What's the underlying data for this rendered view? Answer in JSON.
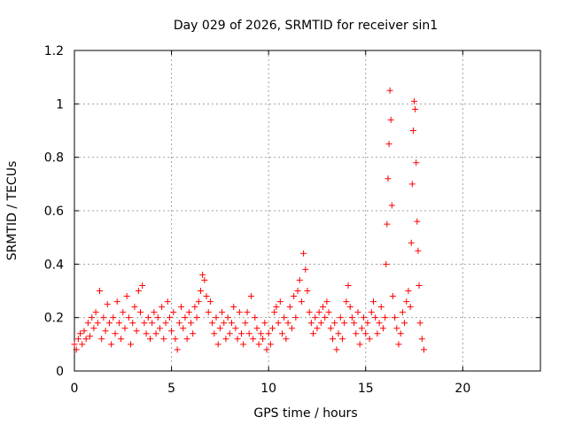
{
  "chart_data": {
    "type": "scatter",
    "title": "Day 029 of 2026, SRMTID for receiver sin1",
    "xlabel": "GPS time / hours",
    "ylabel": "SRMTID / TECUs",
    "xlim": [
      0,
      24
    ],
    "ylim": [
      0,
      1.2
    ],
    "xticks": [
      0,
      5,
      10,
      15,
      20
    ],
    "yticks": [
      0,
      0.2,
      0.4,
      0.6,
      0.8,
      1,
      1.2
    ],
    "xtick_labels": [
      "0",
      "5",
      "10",
      "15",
      "20"
    ],
    "ytick_labels": [
      "0",
      "0.2",
      "0.4",
      "0.6",
      "0.8",
      "1",
      "1.2"
    ],
    "grid": true,
    "marker": "+",
    "series": [
      {
        "name": "SRMTID",
        "color": "#ff0000",
        "points": [
          [
            0.0,
            0.1
          ],
          [
            0.1,
            0.08
          ],
          [
            0.2,
            0.12
          ],
          [
            0.3,
            0.14
          ],
          [
            0.4,
            0.1
          ],
          [
            0.5,
            0.15
          ],
          [
            0.6,
            0.12
          ],
          [
            0.7,
            0.18
          ],
          [
            0.8,
            0.13
          ],
          [
            0.9,
            0.2
          ],
          [
            1.0,
            0.16
          ],
          [
            1.1,
            0.22
          ],
          [
            1.2,
            0.18
          ],
          [
            1.3,
            0.3
          ],
          [
            1.4,
            0.12
          ],
          [
            1.5,
            0.2
          ],
          [
            1.6,
            0.15
          ],
          [
            1.7,
            0.25
          ],
          [
            1.8,
            0.18
          ],
          [
            1.9,
            0.1
          ],
          [
            2.0,
            0.2
          ],
          [
            2.1,
            0.14
          ],
          [
            2.2,
            0.26
          ],
          [
            2.3,
            0.18
          ],
          [
            2.4,
            0.12
          ],
          [
            2.5,
            0.22
          ],
          [
            2.6,
            0.16
          ],
          [
            2.7,
            0.28
          ],
          [
            2.8,
            0.2
          ],
          [
            2.9,
            0.1
          ],
          [
            3.0,
            0.18
          ],
          [
            3.1,
            0.24
          ],
          [
            3.2,
            0.15
          ],
          [
            3.3,
            0.3
          ],
          [
            3.4,
            0.22
          ],
          [
            3.5,
            0.32
          ],
          [
            3.6,
            0.18
          ],
          [
            3.7,
            0.14
          ],
          [
            3.8,
            0.2
          ],
          [
            3.9,
            0.12
          ],
          [
            4.0,
            0.18
          ],
          [
            4.1,
            0.22
          ],
          [
            4.2,
            0.14
          ],
          [
            4.3,
            0.2
          ],
          [
            4.4,
            0.16
          ],
          [
            4.5,
            0.24
          ],
          [
            4.6,
            0.12
          ],
          [
            4.7,
            0.18
          ],
          [
            4.8,
            0.26
          ],
          [
            4.9,
            0.2
          ],
          [
            5.0,
            0.15
          ],
          [
            5.1,
            0.22
          ],
          [
            5.2,
            0.12
          ],
          [
            5.3,
            0.08
          ],
          [
            5.4,
            0.18
          ],
          [
            5.5,
            0.24
          ],
          [
            5.6,
            0.16
          ],
          [
            5.7,
            0.2
          ],
          [
            5.8,
            0.12
          ],
          [
            5.9,
            0.22
          ],
          [
            6.0,
            0.18
          ],
          [
            6.1,
            0.14
          ],
          [
            6.2,
            0.24
          ],
          [
            6.3,
            0.2
          ],
          [
            6.4,
            0.26
          ],
          [
            6.5,
            0.3
          ],
          [
            6.6,
            0.36
          ],
          [
            6.7,
            0.34
          ],
          [
            6.8,
            0.28
          ],
          [
            6.9,
            0.22
          ],
          [
            7.0,
            0.26
          ],
          [
            7.1,
            0.18
          ],
          [
            7.2,
            0.14
          ],
          [
            7.3,
            0.2
          ],
          [
            7.4,
            0.1
          ],
          [
            7.5,
            0.16
          ],
          [
            7.6,
            0.22
          ],
          [
            7.7,
            0.18
          ],
          [
            7.8,
            0.12
          ],
          [
            7.9,
            0.2
          ],
          [
            8.0,
            0.14
          ],
          [
            8.1,
            0.18
          ],
          [
            8.2,
            0.24
          ],
          [
            8.3,
            0.16
          ],
          [
            8.4,
            0.12
          ],
          [
            8.5,
            0.22
          ],
          [
            8.6,
            0.14
          ],
          [
            8.7,
            0.1
          ],
          [
            8.8,
            0.18
          ],
          [
            8.9,
            0.22
          ],
          [
            9.0,
            0.14
          ],
          [
            9.1,
            0.28
          ],
          [
            9.2,
            0.12
          ],
          [
            9.3,
            0.2
          ],
          [
            9.4,
            0.16
          ],
          [
            9.5,
            0.1
          ],
          [
            9.6,
            0.14
          ],
          [
            9.7,
            0.12
          ],
          [
            9.8,
            0.18
          ],
          [
            9.9,
            0.08
          ],
          [
            10.0,
            0.14
          ],
          [
            10.1,
            0.1
          ],
          [
            10.2,
            0.16
          ],
          [
            10.3,
            0.22
          ],
          [
            10.4,
            0.24
          ],
          [
            10.5,
            0.18
          ],
          [
            10.6,
            0.26
          ],
          [
            10.7,
            0.14
          ],
          [
            10.8,
            0.2
          ],
          [
            10.9,
            0.12
          ],
          [
            11.0,
            0.18
          ],
          [
            11.1,
            0.24
          ],
          [
            11.2,
            0.16
          ],
          [
            11.3,
            0.28
          ],
          [
            11.4,
            0.2
          ],
          [
            11.5,
            0.3
          ],
          [
            11.6,
            0.34
          ],
          [
            11.7,
            0.26
          ],
          [
            11.8,
            0.44
          ],
          [
            11.9,
            0.38
          ],
          [
            12.0,
            0.3
          ],
          [
            12.1,
            0.22
          ],
          [
            12.2,
            0.18
          ],
          [
            12.3,
            0.14
          ],
          [
            12.4,
            0.2
          ],
          [
            12.5,
            0.16
          ],
          [
            12.6,
            0.22
          ],
          [
            12.7,
            0.18
          ],
          [
            12.8,
            0.24
          ],
          [
            12.9,
            0.2
          ],
          [
            13.0,
            0.26
          ],
          [
            13.1,
            0.22
          ],
          [
            13.2,
            0.16
          ],
          [
            13.3,
            0.12
          ],
          [
            13.4,
            0.18
          ],
          [
            13.5,
            0.08
          ],
          [
            13.6,
            0.14
          ],
          [
            13.7,
            0.2
          ],
          [
            13.8,
            0.12
          ],
          [
            13.9,
            0.18
          ],
          [
            14.0,
            0.26
          ],
          [
            14.1,
            0.32
          ],
          [
            14.2,
            0.24
          ],
          [
            14.3,
            0.2
          ],
          [
            14.4,
            0.18
          ],
          [
            14.5,
            0.14
          ],
          [
            14.6,
            0.22
          ],
          [
            14.7,
            0.1
          ],
          [
            14.8,
            0.16
          ],
          [
            14.9,
            0.2
          ],
          [
            15.0,
            0.14
          ],
          [
            15.1,
            0.18
          ],
          [
            15.2,
            0.12
          ],
          [
            15.3,
            0.22
          ],
          [
            15.4,
            0.26
          ],
          [
            15.5,
            0.2
          ],
          [
            15.6,
            0.14
          ],
          [
            15.7,
            0.18
          ],
          [
            15.8,
            0.24
          ],
          [
            15.9,
            0.16
          ],
          [
            16.0,
            0.2
          ],
          [
            16.05,
            0.4
          ],
          [
            16.1,
            0.55
          ],
          [
            16.15,
            0.72
          ],
          [
            16.2,
            0.85
          ],
          [
            16.25,
            1.05
          ],
          [
            16.3,
            0.94
          ],
          [
            16.35,
            0.62
          ],
          [
            16.4,
            0.28
          ],
          [
            16.5,
            0.2
          ],
          [
            16.6,
            0.16
          ],
          [
            16.7,
            0.1
          ],
          [
            16.8,
            0.14
          ],
          [
            16.9,
            0.22
          ],
          [
            17.0,
            0.18
          ],
          [
            17.1,
            0.26
          ],
          [
            17.2,
            0.3
          ],
          [
            17.3,
            0.24
          ],
          [
            17.35,
            0.48
          ],
          [
            17.4,
            0.7
          ],
          [
            17.45,
            0.9
          ],
          [
            17.5,
            1.01
          ],
          [
            17.55,
            0.98
          ],
          [
            17.6,
            0.78
          ],
          [
            17.65,
            0.56
          ],
          [
            17.7,
            0.45
          ],
          [
            17.75,
            0.32
          ],
          [
            17.8,
            0.18
          ],
          [
            17.9,
            0.12
          ],
          [
            18.0,
            0.08
          ]
        ]
      }
    ]
  }
}
